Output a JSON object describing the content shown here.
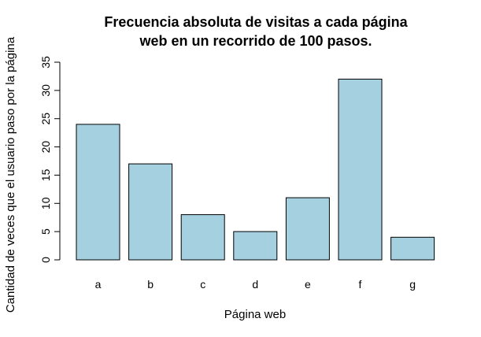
{
  "chart_data": {
    "type": "bar",
    "title_lines": [
      "Frecuencia absoluta de visitas a cada página",
      "web en un recorrido de 100 pasos."
    ],
    "xlabel": "Página web",
    "ylabel": "Cantidad de veces que el usuario paso por la página",
    "categories": [
      "a",
      "b",
      "c",
      "d",
      "e",
      "f",
      "g"
    ],
    "values": [
      24,
      17,
      8,
      5,
      11,
      32,
      4
    ],
    "ylim": [
      0,
      35
    ],
    "yticks": [
      0,
      5,
      10,
      15,
      20,
      25,
      30,
      35
    ],
    "bar_color": "#a4d0e0",
    "grid": false,
    "legend": "none"
  }
}
